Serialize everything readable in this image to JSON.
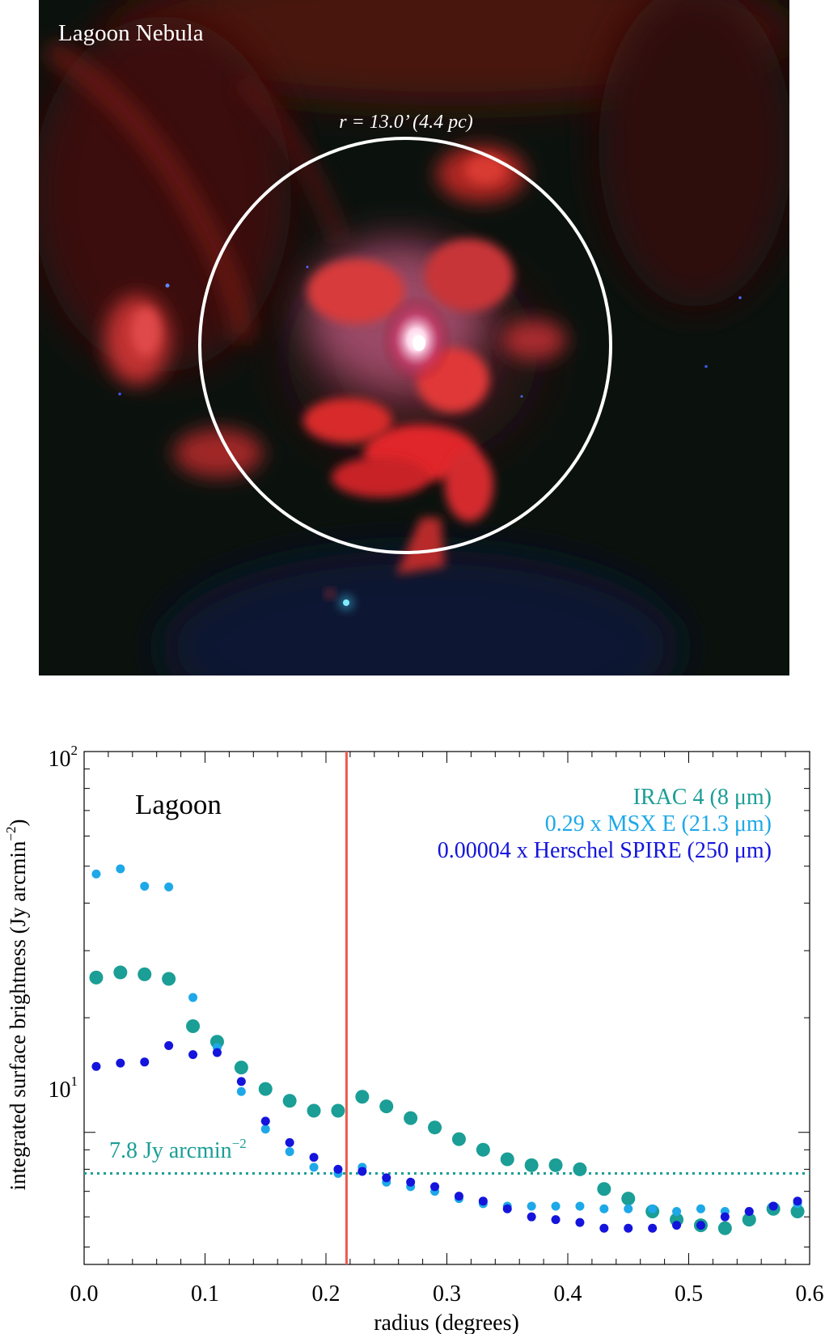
{
  "image_panel": {
    "label": "Lagoon Nebula",
    "circle_label": "r = 13.0’ (4.4 pc)"
  },
  "chart_data": {
    "type": "scatter",
    "panel_label": "Lagoon",
    "xlabel": "radius (degrees)",
    "ylabel": "integrated surface brightness (Jy arcmin",
    "ylabel_sup": "−2",
    "ylabel_end": ")",
    "xlim": [
      0.0,
      0.6
    ],
    "ylim": [
      4.5,
      100
    ],
    "yscale": "log",
    "x_ticks": [
      "0.0",
      "0.1",
      "0.2",
      "0.3",
      "0.4",
      "0.5",
      "0.6"
    ],
    "y_ticks": [
      {
        "base": "10",
        "exp": "2"
      },
      {
        "base": "10",
        "exp": "1"
      }
    ],
    "legend_placement": "top-right",
    "x": [
      0.01,
      0.03,
      0.05,
      0.07,
      0.09,
      0.11,
      0.13,
      0.15,
      0.17,
      0.19,
      0.21,
      0.23,
      0.25,
      0.27,
      0.29,
      0.31,
      0.33,
      0.35,
      0.37,
      0.39,
      0.41,
      0.43,
      0.45,
      0.47,
      0.49,
      0.51,
      0.53,
      0.55,
      0.57,
      0.59
    ],
    "series": [
      {
        "name": "IRAC 4 (8 μm)",
        "color": "#1a9e96",
        "values": [
          25.5,
          26.3,
          26.0,
          25.3,
          19.0,
          17.3,
          14.8,
          13.0,
          12.1,
          11.4,
          11.4,
          12.4,
          11.7,
          10.9,
          10.3,
          9.6,
          9.0,
          8.5,
          8.2,
          8.2,
          8.0,
          7.1,
          6.7,
          6.2,
          5.9,
          5.7,
          5.6,
          5.9,
          6.3,
          6.2
        ]
      },
      {
        "name": "0.29 x MSX E (21.3 μm)",
        "color": "#1ea8e8",
        "values": [
          47.7,
          49.2,
          44.3,
          44.1,
          22.6,
          16.7,
          12.8,
          10.2,
          8.9,
          8.1,
          7.8,
          8.1,
          7.4,
          7.2,
          7.0,
          6.7,
          6.5,
          6.4,
          6.4,
          6.4,
          6.4,
          6.3,
          6.3,
          6.3,
          6.2,
          6.3,
          6.2,
          6.2,
          6.4,
          6.5
        ]
      },
      {
        "name": "0.00004 x Herschel SPIRE (250 μm)",
        "color": "#1414dc",
        "values": [
          14.9,
          15.2,
          15.3,
          16.9,
          16.0,
          16.2,
          13.6,
          10.7,
          9.4,
          8.6,
          8.0,
          7.9,
          7.6,
          7.4,
          7.2,
          6.8,
          6.6,
          6.3,
          6.0,
          5.9,
          5.8,
          5.6,
          5.6,
          5.6,
          5.7,
          5.7,
          6.0,
          6.2,
          6.4,
          6.6
        ]
      }
    ],
    "reference_line": {
      "y": 7.8,
      "label": "7.8 Jy arcmin",
      "label_sup": "−2",
      "color": "#1a9e96"
    },
    "vertical_line": {
      "x": 0.217,
      "color": "#ee5a4a"
    }
  }
}
